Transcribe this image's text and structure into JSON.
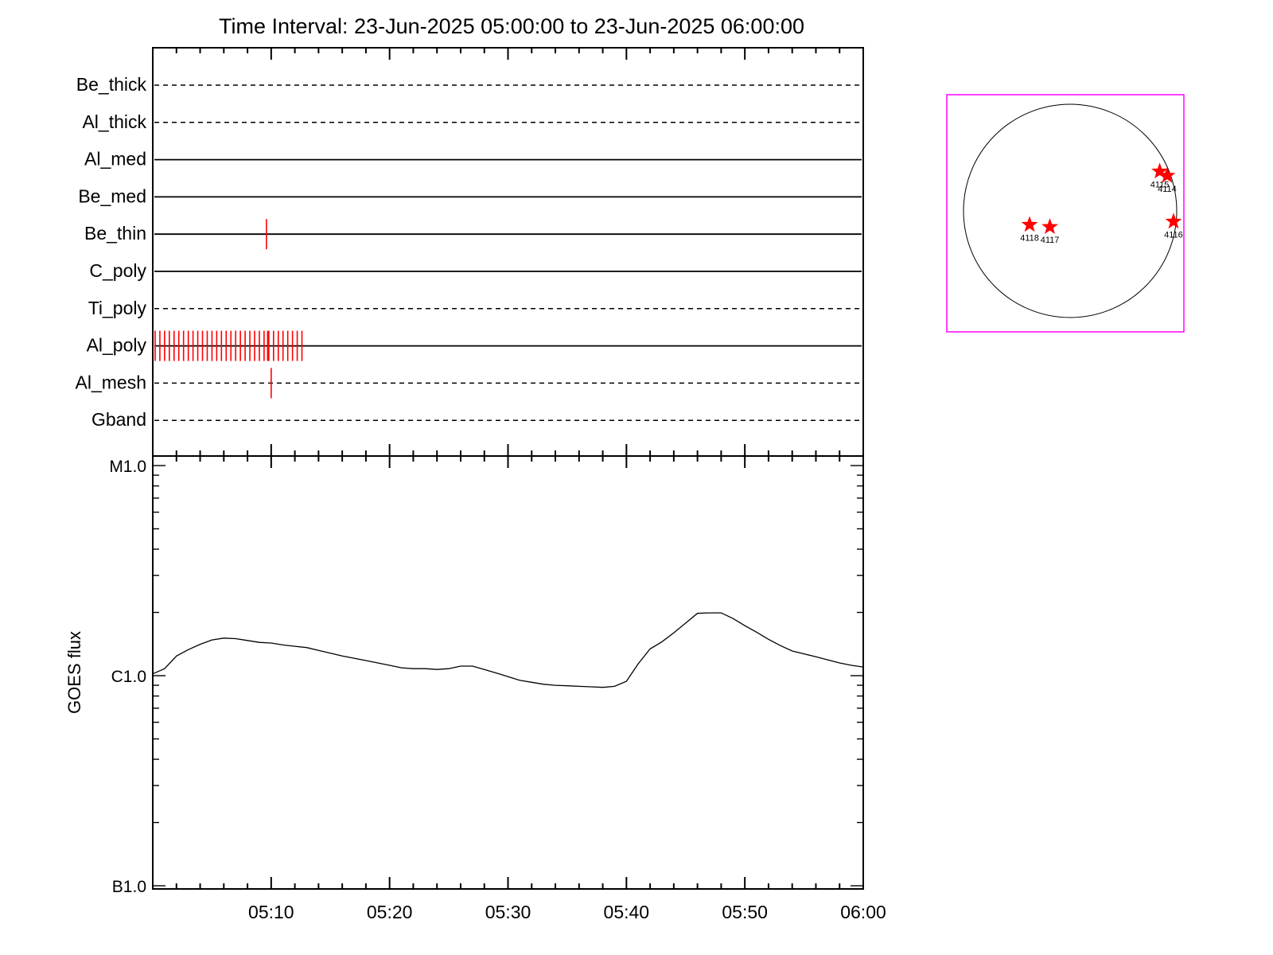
{
  "chart_data": [
    {
      "type": "timeline",
      "title": "Time Interval: 23-Jun-2025 05:00:00 to 23-Jun-2025 06:00:00",
      "x_range": [
        "05:00",
        "06:00"
      ],
      "channels": [
        {
          "label": "Be_thick",
          "style": "dashed",
          "events": []
        },
        {
          "label": "Al_thick",
          "style": "dashed",
          "events": []
        },
        {
          "label": "Al_med",
          "style": "solid",
          "events": []
        },
        {
          "label": "Be_med",
          "style": "solid",
          "events": []
        },
        {
          "label": "Be_thin",
          "style": "solid",
          "events": [
            9.6
          ]
        },
        {
          "label": "C_poly",
          "style": "solid",
          "events": []
        },
        {
          "label": "Ti_poly",
          "style": "dashed",
          "events": []
        },
        {
          "label": "Al_poly",
          "style": "solid",
          "events": [
            0.2,
            0.6,
            1.0,
            1.4,
            1.8,
            2.2,
            2.6,
            3.0,
            3.4,
            3.8,
            4.2,
            4.6,
            5.0,
            5.4,
            5.8,
            6.2,
            6.6,
            7.0,
            7.4,
            7.8,
            8.2,
            8.6,
            9.0,
            9.4,
            9.7,
            9.8,
            10.2,
            10.6,
            11.0,
            11.4,
            11.8,
            12.2,
            12.6
          ]
        },
        {
          "label": "Al_mesh",
          "style": "dashed",
          "events": [
            10.0
          ]
        },
        {
          "label": "Gband",
          "style": "dashed",
          "events": []
        }
      ],
      "event_color": "#ff0000"
    },
    {
      "type": "line",
      "ylabel": "GOES flux",
      "scale": "log",
      "y_ticks": [
        {
          "label": "M1.0",
          "value": 1e-05
        },
        {
          "label": "C1.0",
          "value": 1e-06
        },
        {
          "label": "B1.0",
          "value": 1e-07
        }
      ],
      "ylim": [
        1e-07,
        1e-05
      ],
      "x_tick_labels": [
        "05:10",
        "05:20",
        "05:30",
        "05:40",
        "05:50",
        "06:00"
      ],
      "x_tick_minutes": [
        10,
        20,
        30,
        40,
        50,
        60
      ],
      "xlim_minutes": [
        0,
        60
      ],
      "series": [
        {
          "color": "#000000",
          "x_minutes": [
            0,
            1,
            2,
            3,
            4,
            5,
            6,
            7,
            8,
            9,
            10,
            11,
            12,
            13,
            14,
            15,
            16,
            17,
            18,
            19,
            20,
            21,
            22,
            23,
            24,
            25,
            26,
            27,
            28,
            29,
            30,
            31,
            32,
            33,
            34,
            35,
            36,
            37,
            38,
            39,
            40,
            41,
            42,
            43,
            44,
            45,
            46,
            47,
            48,
            49,
            50,
            51,
            52,
            53,
            54,
            55,
            56,
            57,
            58,
            59,
            60
          ],
          "values": [
            1.02e-06,
            1.08e-06,
            1.24e-06,
            1.33e-06,
            1.41e-06,
            1.48e-06,
            1.51e-06,
            1.5e-06,
            1.47e-06,
            1.44e-06,
            1.43e-06,
            1.4e-06,
            1.38e-06,
            1.36e-06,
            1.32e-06,
            1.28e-06,
            1.24e-06,
            1.21e-06,
            1.18e-06,
            1.15e-06,
            1.12e-06,
            1.09e-06,
            1.08e-06,
            1.08e-06,
            1.07e-06,
            1.08e-06,
            1.11e-06,
            1.11e-06,
            1.07e-06,
            1.03e-06,
            9.9e-07,
            9.5e-07,
            9.3e-07,
            9.1e-07,
            9e-07,
            8.95e-07,
            8.9e-07,
            8.85e-07,
            8.8e-07,
            8.9e-07,
            9.4e-07,
            1.14e-06,
            1.34e-06,
            1.45e-06,
            1.6e-06,
            1.78e-06,
            1.98e-06,
            1.99e-06,
            1.99e-06,
            1.87e-06,
            1.73e-06,
            1.61e-06,
            1.49e-06,
            1.39e-06,
            1.31e-06,
            1.27e-06,
            1.23e-06,
            1.19e-06,
            1.15e-06,
            1.12e-06,
            1.1e-06
          ]
        }
      ]
    },
    {
      "type": "scatter",
      "color": "#ff0000",
      "frame_color": "#ff00ff",
      "points": [
        {
          "label": "4115",
          "x": 0.84,
          "y": 0.37
        },
        {
          "label": "4114",
          "x": 0.91,
          "y": 0.33
        },
        {
          "label": "4116",
          "x": 0.97,
          "y": -0.1
        },
        {
          "label": "4118",
          "x": -0.38,
          "y": -0.13
        },
        {
          "label": "4117",
          "x": -0.19,
          "y": -0.15
        }
      ]
    }
  ]
}
